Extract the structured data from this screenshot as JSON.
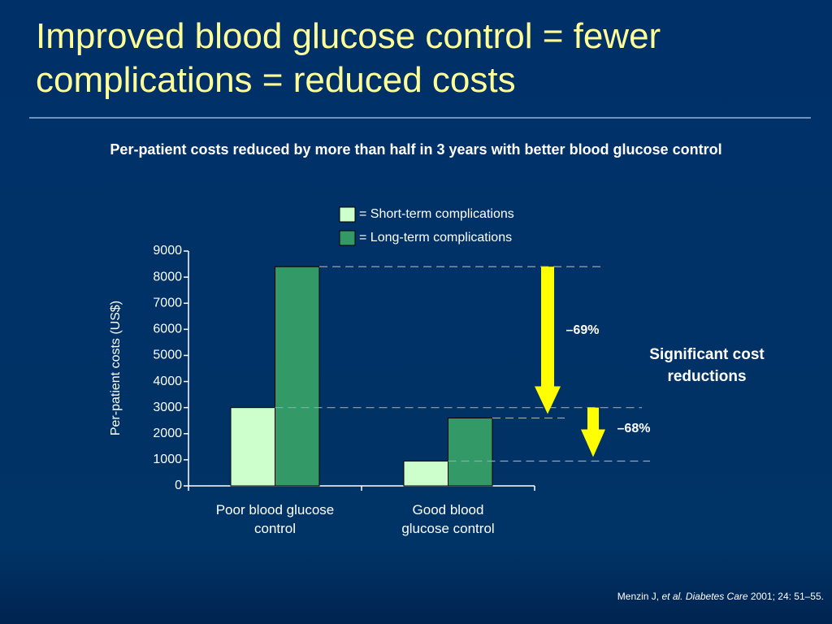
{
  "header": {
    "title": "Improved blood glucose control = fewer complications = reduced costs",
    "subtitle": "Per-patient costs reduced by more than half in 3 years with better blood glucose control"
  },
  "chart_data": {
    "type": "bar",
    "categories": [
      "Poor blood glucose control",
      "Good blood glucose control"
    ],
    "series": [
      {
        "name": "= Short-term complications",
        "color": "#ccffcc",
        "values": [
          3000,
          950
        ]
      },
      {
        "name": "= Long-term complications",
        "color": "#339966",
        "values": [
          8400,
          2600
        ]
      }
    ],
    "ylabel": "Per-patient costs (US$)",
    "ylim": [
      0,
      9000
    ],
    "yticks": [
      0,
      1000,
      2000,
      3000,
      4000,
      5000,
      6000,
      7000,
      8000,
      9000
    ],
    "annotations": [
      "–69%",
      "–68%",
      "Significant cost reductions"
    ],
    "arrow_color": "#ffff00"
  },
  "source": [
    "Menzin J,",
    "et al.",
    "Diabetes Care",
    "2001; 24: 51–55."
  ]
}
